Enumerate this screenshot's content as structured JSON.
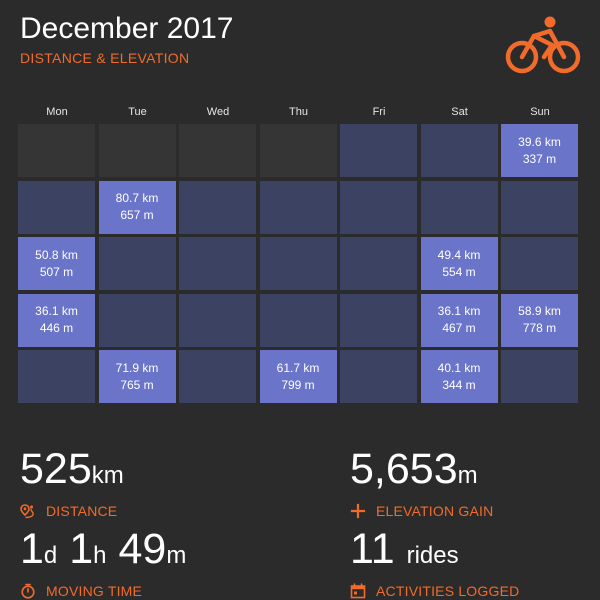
{
  "header": {
    "title": "December 2017",
    "subtitle": "DISTANCE & ELEVATION",
    "logo_icon": "cyclist-icon",
    "accent_color": "#f26b2a"
  },
  "calendar": {
    "weekdays": [
      "Mon",
      "Tue",
      "Wed",
      "Thu",
      "Fri",
      "Sat",
      "Sun"
    ],
    "colors": {
      "empty": "#353535",
      "no_rides": "#3c4262",
      "ride": "#6a74c8"
    },
    "weeks": [
      [
        {
          "state": "empty"
        },
        {
          "state": "empty"
        },
        {
          "state": "empty"
        },
        {
          "state": "empty"
        },
        {
          "state": "no_rides"
        },
        {
          "state": "no_rides"
        },
        {
          "state": "ride",
          "distance": "39.6 km",
          "elevation": "337 m"
        }
      ],
      [
        {
          "state": "no_rides"
        },
        {
          "state": "ride",
          "distance": "80.7 km",
          "elevation": "657 m"
        },
        {
          "state": "no_rides"
        },
        {
          "state": "no_rides"
        },
        {
          "state": "no_rides"
        },
        {
          "state": "no_rides"
        },
        {
          "state": "no_rides"
        }
      ],
      [
        {
          "state": "ride",
          "distance": "50.8 km",
          "elevation": "507 m"
        },
        {
          "state": "no_rides"
        },
        {
          "state": "no_rides"
        },
        {
          "state": "no_rides"
        },
        {
          "state": "no_rides"
        },
        {
          "state": "ride",
          "distance": "49.4 km",
          "elevation": "554 m"
        },
        {
          "state": "no_rides"
        }
      ],
      [
        {
          "state": "ride",
          "distance": "36.1 km",
          "elevation": "446 m"
        },
        {
          "state": "no_rides"
        },
        {
          "state": "no_rides"
        },
        {
          "state": "no_rides"
        },
        {
          "state": "no_rides"
        },
        {
          "state": "ride",
          "distance": "36.1 km",
          "elevation": "467 m"
        },
        {
          "state": "ride",
          "distance": "58.9 km",
          "elevation": "778 m"
        }
      ],
      [
        {
          "state": "no_rides"
        },
        {
          "state": "ride",
          "distance": "71.9 km",
          "elevation": "765 m"
        },
        {
          "state": "no_rides"
        },
        {
          "state": "ride",
          "distance": "61.7 km",
          "elevation": "799 m"
        },
        {
          "state": "no_rides"
        },
        {
          "state": "ride",
          "distance": "40.1 km",
          "elevation": "344 m"
        },
        {
          "state": "no_rides"
        }
      ]
    ]
  },
  "stats": {
    "distance": {
      "value": "525",
      "unit": "km",
      "label": "DISTANCE",
      "icon": "route-pin-icon"
    },
    "elevation": {
      "value": "5,653",
      "unit": "m",
      "label": "ELEVATION GAIN",
      "icon": "plus-icon"
    },
    "moving_time": {
      "days": "1",
      "days_unit": "d",
      "hours": "1",
      "hours_unit": "h",
      "minutes": "49",
      "minutes_unit": "m",
      "label": "MOVING TIME",
      "icon": "stopwatch-icon"
    },
    "activities": {
      "value": "11",
      "unit": "rides",
      "label": "ACTIVITIES LOGGED",
      "icon": "calendar-icon"
    }
  }
}
